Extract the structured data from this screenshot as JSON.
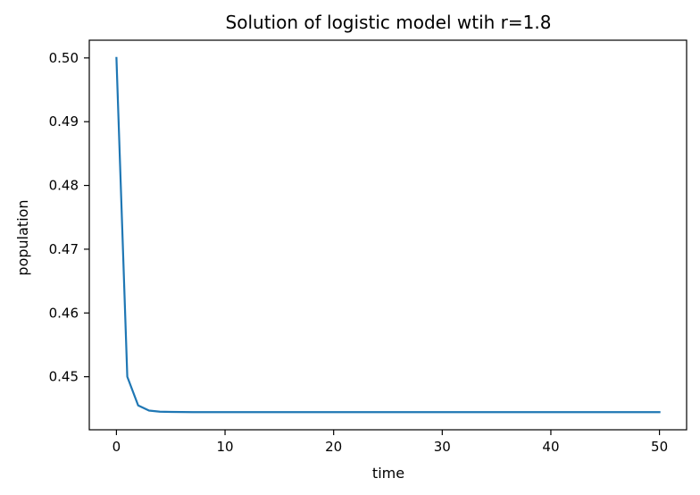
{
  "chart_data": {
    "type": "line",
    "title": "Solution of logistic model wtih r=1.8",
    "xlabel": "time",
    "ylabel": "population",
    "xlim": [
      -2.5,
      52.5
    ],
    "ylim": [
      0.44168,
      0.50278
    ],
    "xticks": [
      0,
      10,
      20,
      30,
      40,
      50
    ],
    "yticks": [
      0.45,
      0.46,
      0.47,
      0.48,
      0.49,
      0.5
    ],
    "xtick_labels": [
      "0",
      "10",
      "20",
      "30",
      "40",
      "50"
    ],
    "ytick_labels": [
      "0.45",
      "0.46",
      "0.47",
      "0.48",
      "0.49",
      "0.50"
    ],
    "grid": false,
    "series": [
      {
        "color": "#1f77b4",
        "x": [
          0,
          1,
          2,
          3,
          4,
          5,
          6,
          7,
          8,
          9,
          10,
          11,
          12,
          13,
          14,
          15,
          16,
          17,
          18,
          19,
          20,
          21,
          22,
          23,
          24,
          25,
          26,
          27,
          28,
          29,
          30,
          31,
          32,
          33,
          34,
          35,
          36,
          37,
          38,
          39,
          40,
          41,
          42,
          43,
          44,
          45,
          46,
          47,
          48,
          49,
          50
        ],
        "y": [
          0.5,
          0.45,
          0.4455,
          0.44469,
          0.44452,
          0.44448,
          0.44446,
          0.44445,
          0.44445,
          0.44445,
          0.44445,
          0.44445,
          0.44445,
          0.44445,
          0.44445,
          0.44445,
          0.44445,
          0.44445,
          0.44445,
          0.44445,
          0.44445,
          0.44445,
          0.44445,
          0.44445,
          0.44445,
          0.44445,
          0.44445,
          0.44445,
          0.44445,
          0.44445,
          0.44445,
          0.44445,
          0.44445,
          0.44445,
          0.44445,
          0.44445,
          0.44445,
          0.44445,
          0.44445,
          0.44445,
          0.44445,
          0.44445,
          0.44445,
          0.44445,
          0.44445,
          0.44445,
          0.44445,
          0.44445,
          0.44445,
          0.44445,
          0.44445
        ]
      }
    ]
  }
}
